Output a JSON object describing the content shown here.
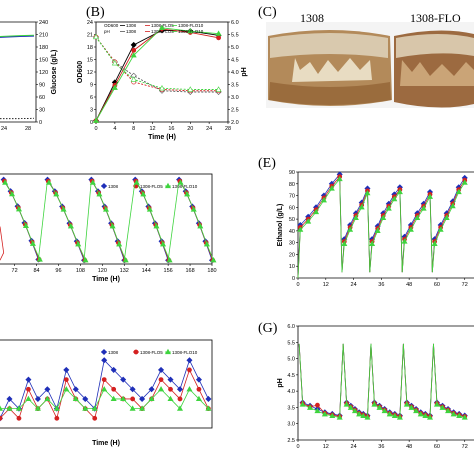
{
  "panels": {
    "B": "(B)",
    "C": "(C)",
    "E": "(E)",
    "G": "(G)"
  },
  "photo": {
    "label_left": "1308",
    "label_right": "1308-FLO"
  },
  "colors": {
    "s1308": "#1f2fb8",
    "sFLO5": "#d42020",
    "sFLO10": "#3ed43e",
    "black": "#000000",
    "grey": "#555555"
  },
  "chart_data": [
    {
      "id": "A_partial",
      "type": "line",
      "ylabel": "Glucose (g/L)",
      "xlabel": "",
      "x_ticks": [
        "24",
        "28"
      ],
      "y_ticks": [
        "0",
        "30",
        "60",
        "90",
        "120",
        "150",
        "180",
        "210",
        "240"
      ],
      "ylim": [
        0,
        240
      ]
    },
    {
      "id": "B",
      "type": "line",
      "xlabel": "Time (H)",
      "ylabel": "OD600",
      "ylabel_right": "pH",
      "xlim": [
        0,
        28
      ],
      "ylim": [
        0,
        24
      ],
      "ylim_right": [
        2.0,
        6.0
      ],
      "x_ticks": [
        "0",
        "4",
        "8",
        "12",
        "16",
        "20",
        "24",
        "28"
      ],
      "y_ticks": [
        "0",
        "3",
        "6",
        "9",
        "12",
        "15",
        "18",
        "21",
        "24"
      ],
      "y_ticks_right": [
        "2.0",
        "2.5",
        "3.0",
        "3.5",
        "4.0",
        "4.5",
        "5.0",
        "5.5",
        "6.0"
      ],
      "legend": [
        "OD600",
        "1308",
        "1308-FLO5",
        "1308-FLO10",
        "pH",
        "1308",
        "1308-FLO5",
        "1308-FLO10"
      ],
      "x": [
        0,
        4,
        8,
        14,
        20,
        26
      ],
      "series": [
        {
          "name": "1308",
          "axis": "left",
          "values": [
            0.3,
            9.5,
            18.5,
            22.0,
            21.8,
            20.8
          ]
        },
        {
          "name": "1308-FLO5",
          "axis": "left",
          "values": [
            0.3,
            8.8,
            17.2,
            22.3,
            21.5,
            20.2
          ]
        },
        {
          "name": "1308-FLO10",
          "axis": "left",
          "values": [
            0.3,
            8.2,
            16.0,
            22.6,
            21.8,
            21.2
          ]
        },
        {
          "name": "1308",
          "axis": "right",
          "values": [
            5.4,
            4.4,
            3.85,
            3.25,
            3.2,
            3.2
          ]
        },
        {
          "name": "1308-FLO5",
          "axis": "right",
          "values": [
            5.4,
            4.4,
            3.6,
            3.3,
            3.25,
            3.25
          ]
        },
        {
          "name": "1308-FLO10",
          "axis": "right",
          "values": [
            5.4,
            4.35,
            3.7,
            3.35,
            3.3,
            3.3
          ]
        }
      ]
    },
    {
      "id": "D_partial",
      "type": "line",
      "xlabel": "Time (H)",
      "x_ticks": [
        "72",
        "84",
        "96",
        "108",
        "120",
        "132",
        "144",
        "156",
        "168",
        "180"
      ],
      "xlim": [
        64,
        180
      ],
      "ylim": [
        0,
        240
      ],
      "legend": [
        "1308",
        "1308-FLO5",
        "1308-FLO10"
      ],
      "cycles": [
        {
          "t0": 66,
          "t1": 85,
          "top": 225,
          "bottom": 12
        },
        {
          "t0": 90,
          "t1": 110,
          "top": 225,
          "bottom": 10
        },
        {
          "t0": 114,
          "t1": 132,
          "top": 225,
          "bottom": 10
        },
        {
          "t0": 138,
          "t1": 156,
          "top": 225,
          "bottom": 10
        },
        {
          "t0": 162,
          "t1": 180,
          "top": 225,
          "bottom": 10
        }
      ]
    },
    {
      "id": "E",
      "type": "line",
      "xlabel": "",
      "ylabel": "Ethanol (g/L)",
      "xlim": [
        0,
        76
      ],
      "ylim": [
        0,
        90
      ],
      "x_ticks": [
        "0",
        "12",
        "24",
        "36",
        "48",
        "60",
        "72"
      ],
      "y_ticks": [
        "0",
        "10",
        "20",
        "30",
        "40",
        "50",
        "60",
        "70",
        "80",
        "90"
      ],
      "cycles": [
        {
          "t0": 0,
          "t1": 18,
          "start": 0,
          "values": [
            45,
            52,
            60,
            70,
            80,
            88
          ]
        },
        {
          "t0": 19,
          "t1": 30,
          "start": 5,
          "values": [
            33,
            45,
            55,
            64,
            76
          ]
        },
        {
          "t0": 31,
          "t1": 44,
          "start": 5,
          "values": [
            33,
            44,
            55,
            63,
            71,
            77
          ]
        },
        {
          "t0": 45,
          "t1": 57,
          "start": 5,
          "values": [
            35,
            45,
            55,
            63,
            73
          ]
        },
        {
          "t0": 58,
          "t1": 72,
          "start": 5,
          "values": [
            33,
            45,
            55,
            65,
            77,
            85
          ]
        }
      ]
    },
    {
      "id": "F_partial",
      "type": "line",
      "xlabel": "Time (H)",
      "legend": [
        "1308",
        "1308-FLO5",
        "1308-FLO10"
      ],
      "xlim": [
        64,
        182
      ],
      "ylim": [
        0,
        10
      ]
    },
    {
      "id": "G",
      "type": "line",
      "xlabel": "",
      "ylabel": "pH",
      "xlim": [
        0,
        76
      ],
      "ylim": [
        2.5,
        6.0
      ],
      "x_ticks": [
        "0",
        "12",
        "24",
        "36",
        "48",
        "60",
        "72"
      ],
      "y_ticks": [
        "2.5",
        "3.0",
        "3.5",
        "4.0",
        "4.5",
        "5.0",
        "5.5",
        "6.0"
      ]
    }
  ]
}
